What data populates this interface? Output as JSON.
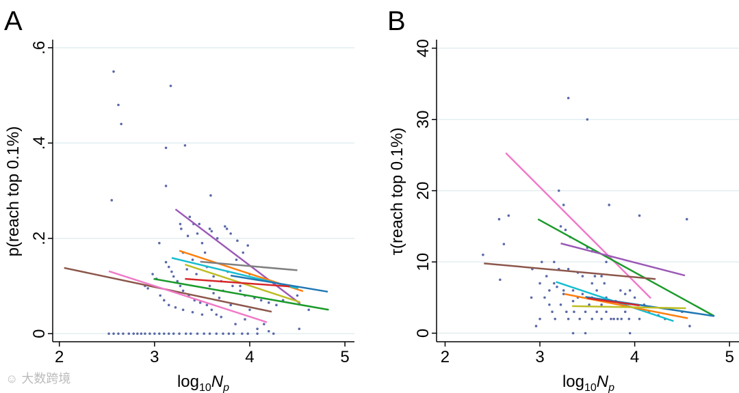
{
  "watermark": "大数跨境",
  "chart_data": [
    {
      "type": "scatter",
      "panel": "A",
      "ylabel": "p(reach top 0.1%)",
      "xlabel": {
        "base": "log",
        "sub": "10",
        "var": "N",
        "varsub": "p"
      },
      "xlim": [
        1.93,
        5.1
      ],
      "ylim": [
        -0.017,
        0.617
      ],
      "xticks": [
        {
          "v": 2,
          "label": "2"
        },
        {
          "v": 3,
          "label": "3"
        },
        {
          "v": 4,
          "label": "4"
        },
        {
          "v": 5,
          "label": "5"
        }
      ],
      "yticks": [
        {
          "v": 0,
          "label": "0"
        },
        {
          "v": 0.2,
          "label": ".2"
        },
        {
          "v": 0.4,
          "label": ".4"
        },
        {
          "v": 0.6,
          "label": ".6"
        }
      ],
      "grid": true,
      "points": [
        [
          2.57,
          0.55
        ],
        [
          2.62,
          0.48
        ],
        [
          2.65,
          0.44
        ],
        [
          3.17,
          0.52
        ],
        [
          3.12,
          0.39
        ],
        [
          3.32,
          0.395
        ],
        [
          2.55,
          0.28
        ],
        [
          3.12,
          0.31
        ],
        [
          3.59,
          0.29
        ],
        [
          3.37,
          0.245
        ],
        [
          3.05,
          0.19
        ],
        [
          2.98,
          0.125
        ],
        [
          3.02,
          0.115
        ],
        [
          2.9,
          0.1
        ],
        [
          2.93,
          0.095
        ],
        [
          3.12,
          0.15
        ],
        [
          3.15,
          0.14
        ],
        [
          3.18,
          0.13
        ],
        [
          3.2,
          0.12
        ],
        [
          3.24,
          0.11
        ],
        [
          3.27,
          0.1
        ],
        [
          3.3,
          0.09
        ],
        [
          3.36,
          0.08
        ],
        [
          3.42,
          0.07
        ],
        [
          3.48,
          0.065
        ],
        [
          3.55,
          0.06
        ],
        [
          3.6,
          0.05
        ],
        [
          3.65,
          0.04
        ],
        [
          3.7,
          0.035
        ],
        [
          3.06,
          0.08
        ],
        [
          3.1,
          0.07
        ],
        [
          3.15,
          0.06
        ],
        [
          3.22,
          0.055
        ],
        [
          3.3,
          0.05
        ],
        [
          3.4,
          0.045
        ],
        [
          3.5,
          0.04
        ],
        [
          3.27,
          0.23
        ],
        [
          3.28,
          0.22
        ],
        [
          3.35,
          0.205
        ],
        [
          3.41,
          0.23
        ],
        [
          3.45,
          0.21
        ],
        [
          3.47,
          0.23
        ],
        [
          3.5,
          0.19
        ],
        [
          3.53,
          0.17
        ],
        [
          3.58,
          0.22
        ],
        [
          3.6,
          0.215
        ],
        [
          3.66,
          0.2
        ],
        [
          3.74,
          0.225
        ],
        [
          3.76,
          0.22
        ],
        [
          3.8,
          0.21
        ],
        [
          3.87,
          0.195
        ],
        [
          3.86,
          0.155
        ],
        [
          3.93,
          0.17
        ],
        [
          3.98,
          0.185
        ],
        [
          4.0,
          0.125
        ],
        [
          3.55,
          0.14
        ],
        [
          3.62,
          0.12
        ],
        [
          3.7,
          0.11
        ],
        [
          3.77,
          0.13
        ],
        [
          3.82,
          0.1
        ],
        [
          3.9,
          0.09
        ],
        [
          3.95,
          0.08
        ],
        [
          4.05,
          0.075
        ],
        [
          4.12,
          0.07
        ],
        [
          4.2,
          0.065
        ],
        [
          4.28,
          0.06
        ],
        [
          4.35,
          0.07
        ],
        [
          4.5,
          0.08
        ],
        [
          4.62,
          0.05
        ],
        [
          4.52,
          0.01
        ],
        [
          3.9,
          0.1
        ],
        [
          3.72,
          0.09
        ],
        [
          3.62,
          0.085
        ],
        [
          3.68,
          0.075
        ],
        [
          3.85,
          0.02
        ],
        [
          3.95,
          0.03
        ],
        [
          4.08,
          0.01
        ],
        [
          4.15,
          0.02
        ],
        [
          4.2,
          0.005
        ],
        [
          3.3,
          0.17
        ],
        [
          3.4,
          0.155
        ],
        [
          3.34,
          0.135
        ],
        [
          3.44,
          0.125
        ],
        [
          3.58,
          0.1
        ],
        [
          3.8,
          0.06
        ],
        [
          4.0,
          0.05
        ],
        [
          2.52,
          0
        ],
        [
          2.57,
          0
        ],
        [
          2.62,
          0
        ],
        [
          2.67,
          0
        ],
        [
          2.73,
          0
        ],
        [
          2.78,
          0
        ],
        [
          2.82,
          0
        ],
        [
          2.86,
          0
        ],
        [
          2.9,
          0
        ],
        [
          2.95,
          0
        ],
        [
          3.0,
          0
        ],
        [
          3.05,
          0
        ],
        [
          3.1,
          0
        ],
        [
          3.15,
          0
        ],
        [
          3.2,
          0
        ],
        [
          3.26,
          0
        ],
        [
          3.33,
          0
        ],
        [
          3.38,
          0
        ],
        [
          3.45,
          0
        ],
        [
          3.52,
          0
        ],
        [
          3.58,
          0
        ],
        [
          3.65,
          0
        ],
        [
          3.72,
          0
        ],
        [
          3.78,
          0
        ],
        [
          3.83,
          0
        ],
        [
          3.92,
          0
        ],
        [
          3.98,
          0
        ],
        [
          4.08,
          0
        ],
        [
          4.25,
          0
        ]
      ],
      "series": [
        {
          "name": "purple",
          "color": "#9b59b6",
          "x": [
            3.22,
            4.53
          ],
          "y": [
            0.261,
            0.063
          ]
        },
        {
          "name": "orange",
          "color": "#ff7f0e",
          "x": [
            3.26,
            4.56
          ],
          "y": [
            0.174,
            0.089
          ]
        },
        {
          "name": "cyan",
          "color": "#17becf",
          "x": [
            3.18,
            4.51
          ],
          "y": [
            0.159,
            0.095
          ]
        },
        {
          "name": "gray",
          "color": "#7f7f7f",
          "x": [
            3.48,
            4.5
          ],
          "y": [
            0.151,
            0.133
          ]
        },
        {
          "name": "olive",
          "color": "#bcbd22",
          "x": [
            3.32,
            4.53
          ],
          "y": [
            0.145,
            0.066
          ]
        },
        {
          "name": "blue",
          "color": "#1f77b4",
          "x": [
            3.8,
            4.82
          ],
          "y": [
            0.122,
            0.088
          ]
        },
        {
          "name": "red",
          "color": "#d62728",
          "x": [
            3.32,
            4.42
          ],
          "y": [
            0.115,
            0.099
          ]
        },
        {
          "name": "green",
          "color": "#1a9a2a",
          "x": [
            2.99,
            4.83
          ],
          "y": [
            0.115,
            0.05
          ]
        },
        {
          "name": "brown",
          "color": "#8c564b",
          "x": [
            2.05,
            4.23
          ],
          "y": [
            0.138,
            0.046
          ]
        },
        {
          "name": "pink",
          "color": "#f07ac8",
          "x": [
            2.52,
            4.18
          ],
          "y": [
            0.131,
            0.024
          ]
        }
      ]
    },
    {
      "type": "scatter",
      "panel": "B",
      "ylabel": "τ(reach top 0.1%)",
      "xlabel": {
        "base": "log",
        "sub": "10",
        "var": "N",
        "varsub": "p"
      },
      "xlim": [
        1.91,
        5.1
      ],
      "ylim": [
        -1.2,
        41.2
      ],
      "xticks": [
        {
          "v": 2,
          "label": "2"
        },
        {
          "v": 3,
          "label": "3"
        },
        {
          "v": 4,
          "label": "4"
        },
        {
          "v": 5,
          "label": "5"
        }
      ],
      "yticks": [
        {
          "v": 0,
          "label": "0"
        },
        {
          "v": 10,
          "label": "10"
        },
        {
          "v": 20,
          "label": "20"
        },
        {
          "v": 30,
          "label": "30"
        },
        {
          "v": 40,
          "label": "40"
        }
      ],
      "grid": true,
      "points": [
        [
          3.3,
          33
        ],
        [
          3.5,
          30
        ],
        [
          3.2,
          20
        ],
        [
          3.25,
          18
        ],
        [
          3.73,
          18
        ],
        [
          2.57,
          16
        ],
        [
          2.67,
          16.5
        ],
        [
          4.05,
          16.5
        ],
        [
          4.55,
          16
        ],
        [
          3.22,
          15
        ],
        [
          3.27,
          14.5
        ],
        [
          3.32,
          13.5
        ],
        [
          3.5,
          12
        ],
        [
          3.55,
          11.5
        ],
        [
          2.62,
          12.5
        ],
        [
          2.4,
          11
        ],
        [
          3.7,
          10
        ],
        [
          3.02,
          10
        ],
        [
          3.15,
          10
        ],
        [
          3.2,
          9
        ],
        [
          3.3,
          9
        ],
        [
          3.4,
          8.5
        ],
        [
          3.45,
          8
        ],
        [
          3.58,
          8
        ],
        [
          3.65,
          8
        ],
        [
          2.58,
          7.5
        ],
        [
          2.92,
          9
        ],
        [
          3.0,
          7
        ],
        [
          3.07,
          8
        ],
        [
          3.15,
          7
        ],
        [
          3.25,
          6
        ],
        [
          3.35,
          6
        ],
        [
          3.45,
          5.5
        ],
        [
          3.55,
          5
        ],
        [
          3.6,
          6
        ],
        [
          3.7,
          5
        ],
        [
          3.8,
          4.5
        ],
        [
          3.88,
          4
        ],
        [
          3.95,
          6
        ],
        [
          4.0,
          5
        ],
        [
          4.15,
          3
        ],
        [
          4.25,
          2.5
        ],
        [
          4.32,
          2
        ],
        [
          4.5,
          3
        ],
        [
          4.58,
          1
        ],
        [
          2.91,
          5
        ],
        [
          3.05,
          5
        ],
        [
          3.1,
          4
        ],
        [
          3.13,
          3
        ],
        [
          3.16,
          2
        ],
        [
          3.22,
          4
        ],
        [
          3.28,
          3
        ],
        [
          3.3,
          2
        ],
        [
          3.36,
          3
        ],
        [
          3.42,
          2
        ],
        [
          3.48,
          3
        ],
        [
          3.52,
          4
        ],
        [
          3.55,
          2
        ],
        [
          3.6,
          3
        ],
        [
          3.65,
          2
        ],
        [
          3.7,
          3
        ],
        [
          3.75,
          2
        ],
        [
          3.78,
          2
        ],
        [
          3.82,
          2
        ],
        [
          3.86,
          2
        ],
        [
          3.9,
          3
        ],
        [
          3.94,
          2
        ],
        [
          4.05,
          2
        ],
        [
          4.1,
          4
        ],
        [
          3.35,
          0
        ],
        [
          3.48,
          0
        ],
        [
          3.95,
          0
        ],
        [
          3.35,
          4.5
        ],
        [
          3.25,
          5.5
        ],
        [
          3.1,
          6
        ],
        [
          3.18,
          6.5
        ],
        [
          3.4,
          5
        ],
        [
          3.65,
          4
        ],
        [
          3.85,
          6
        ],
        [
          3.9,
          5.5
        ],
        [
          3.0,
          2
        ],
        [
          2.96,
          1
        ],
        [
          3.55,
          7
        ],
        [
          3.68,
          7
        ]
      ],
      "series": [
        {
          "name": "pink",
          "color": "#f07ac8",
          "x": [
            2.64,
            4.17
          ],
          "y": [
            25.3,
            4.9
          ]
        },
        {
          "name": "green",
          "color": "#1a9a2a",
          "x": [
            2.98,
            4.84
          ],
          "y": [
            16.0,
            2.4
          ]
        },
        {
          "name": "purple",
          "color": "#9b59b6",
          "x": [
            3.22,
            4.53
          ],
          "y": [
            12.6,
            8.1
          ]
        },
        {
          "name": "brown",
          "color": "#8c564b",
          "x": [
            2.41,
            4.22
          ],
          "y": [
            9.8,
            7.6
          ]
        },
        {
          "name": "cyan",
          "color": "#17becf",
          "x": [
            3.17,
            4.41
          ],
          "y": [
            7.2,
            1.7
          ]
        },
        {
          "name": "orange",
          "color": "#ff7f0e",
          "x": [
            3.26,
            4.56
          ],
          "y": [
            5.5,
            2.1
          ]
        },
        {
          "name": "blue",
          "color": "#1f77b4",
          "x": [
            3.48,
            4.84
          ],
          "y": [
            5.1,
            2.4
          ]
        },
        {
          "name": "red",
          "color": "#d62728",
          "x": [
            3.5,
            4.05
          ],
          "y": [
            4.9,
            3.9
          ]
        },
        {
          "name": "olive",
          "color": "#bcbd22",
          "x": [
            3.34,
            4.54
          ],
          "y": [
            3.8,
            3.5
          ]
        }
      ]
    }
  ]
}
